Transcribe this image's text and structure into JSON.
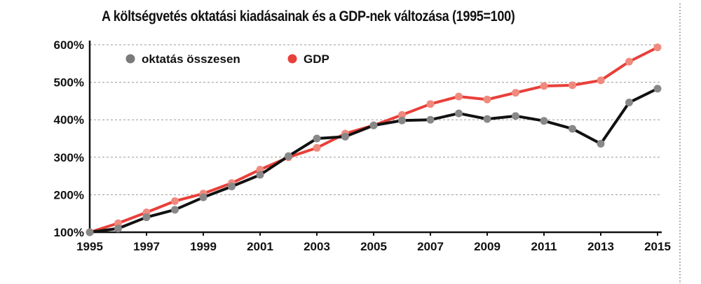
{
  "chart_data": {
    "type": "line",
    "title": "A költségvetés oktatási kiadásainak és a GDP-nek változása (1995=100)",
    "xlabel": "",
    "ylabel": "",
    "x": [
      1995,
      1996,
      1997,
      1998,
      1999,
      2000,
      2001,
      2002,
      2003,
      2004,
      2005,
      2006,
      2007,
      2008,
      2009,
      2010,
      2011,
      2012,
      2013,
      2014,
      2015
    ],
    "x_tick_labels": [
      "1995",
      "1997",
      "1999",
      "2001",
      "2003",
      "2005",
      "2007",
      "2009",
      "2011",
      "2013",
      "2015"
    ],
    "y_tick_labels": [
      "100%",
      "200%",
      "300%",
      "400%",
      "500%",
      "600%"
    ],
    "ylim": [
      100,
      600
    ],
    "grid": "horizontal dashed",
    "legend_position": "top-left",
    "series": [
      {
        "name": "oktatás összesen",
        "line_color": "#111111",
        "marker_color": "#888888",
        "values": [
          100,
          110,
          140,
          160,
          193,
          222,
          253,
          303,
          350,
          355,
          385,
          398,
          400,
          417,
          402,
          410,
          397,
          376,
          336,
          446,
          483
        ]
      },
      {
        "name": "GDP",
        "line_color": "#e8403a",
        "marker_color": "#f08a7e",
        "values": [
          100,
          124,
          153,
          183,
          203,
          231,
          267,
          300,
          325,
          363,
          385,
          413,
          442,
          462,
          454,
          472,
          490,
          492,
          505,
          555,
          593
        ]
      }
    ]
  }
}
